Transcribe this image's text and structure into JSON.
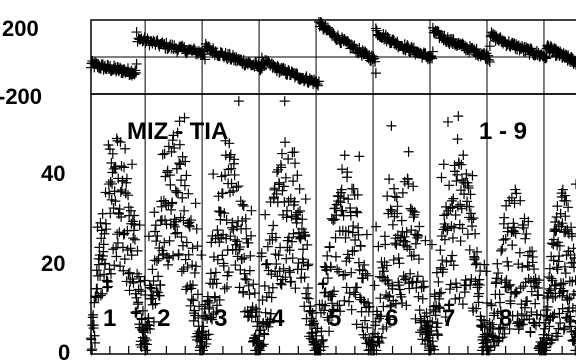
{
  "chart_data": [
    {
      "type": "scatter",
      "name": "phase-panel",
      "ylim": [
        -200,
        200
      ],
      "y_ticks": [
        "200",
        "-200"
      ],
      "reference_line_y": 0,
      "marker": "+",
      "segments": [
        {
          "start": 0,
          "end": 0.8,
          "phase_start": -40,
          "phase_end": -90
        },
        {
          "start": 0.8,
          "end": 2.0,
          "phase_start": 110,
          "phase_end": 20
        },
        {
          "start": 2.0,
          "end": 3.0,
          "phase_start": 60,
          "phase_end": -60
        },
        {
          "start": 3.0,
          "end": 4.0,
          "phase_start": -20,
          "phase_end": -150
        },
        {
          "start": 4.0,
          "end": 5.0,
          "phase_start": 200,
          "phase_end": -20
        },
        {
          "start": 5.0,
          "end": 6.0,
          "phase_start": 150,
          "phase_end": -10
        },
        {
          "start": 6.0,
          "end": 7.0,
          "phase_start": 150,
          "phase_end": 0
        },
        {
          "start": 7.0,
          "end": 8.0,
          "phase_start": 130,
          "phase_end": 0
        },
        {
          "start": 8.0,
          "end": 8.6,
          "phase_start": 60,
          "phase_end": -40
        }
      ]
    },
    {
      "type": "scatter",
      "name": "amplitude-panel",
      "ylim": [
        0,
        50
      ],
      "y_ticks": [
        "40",
        "20",
        "0"
      ],
      "marker": "+",
      "title": "MIZ - TIA",
      "annotation": "1 - 9",
      "segment_labels": [
        "1",
        "2",
        "3",
        "4",
        "5",
        "6",
        "7",
        "8"
      ],
      "segments": [
        {
          "start": 0,
          "end": 0.95,
          "peak": 30
        },
        {
          "start": 0.95,
          "end": 1.95,
          "peak": 31
        },
        {
          "start": 1.95,
          "end": 2.95,
          "peak": 27
        },
        {
          "start": 2.95,
          "end": 3.95,
          "peak": 28
        },
        {
          "start": 3.95,
          "end": 4.95,
          "peak": 22
        },
        {
          "start": 4.95,
          "end": 5.95,
          "peak": 22
        },
        {
          "start": 5.95,
          "end": 6.95,
          "peak": 24
        },
        {
          "start": 6.95,
          "end": 7.95,
          "peak": 19
        },
        {
          "start": 7.95,
          "end": 8.6,
          "peak": 18
        }
      ]
    }
  ]
}
